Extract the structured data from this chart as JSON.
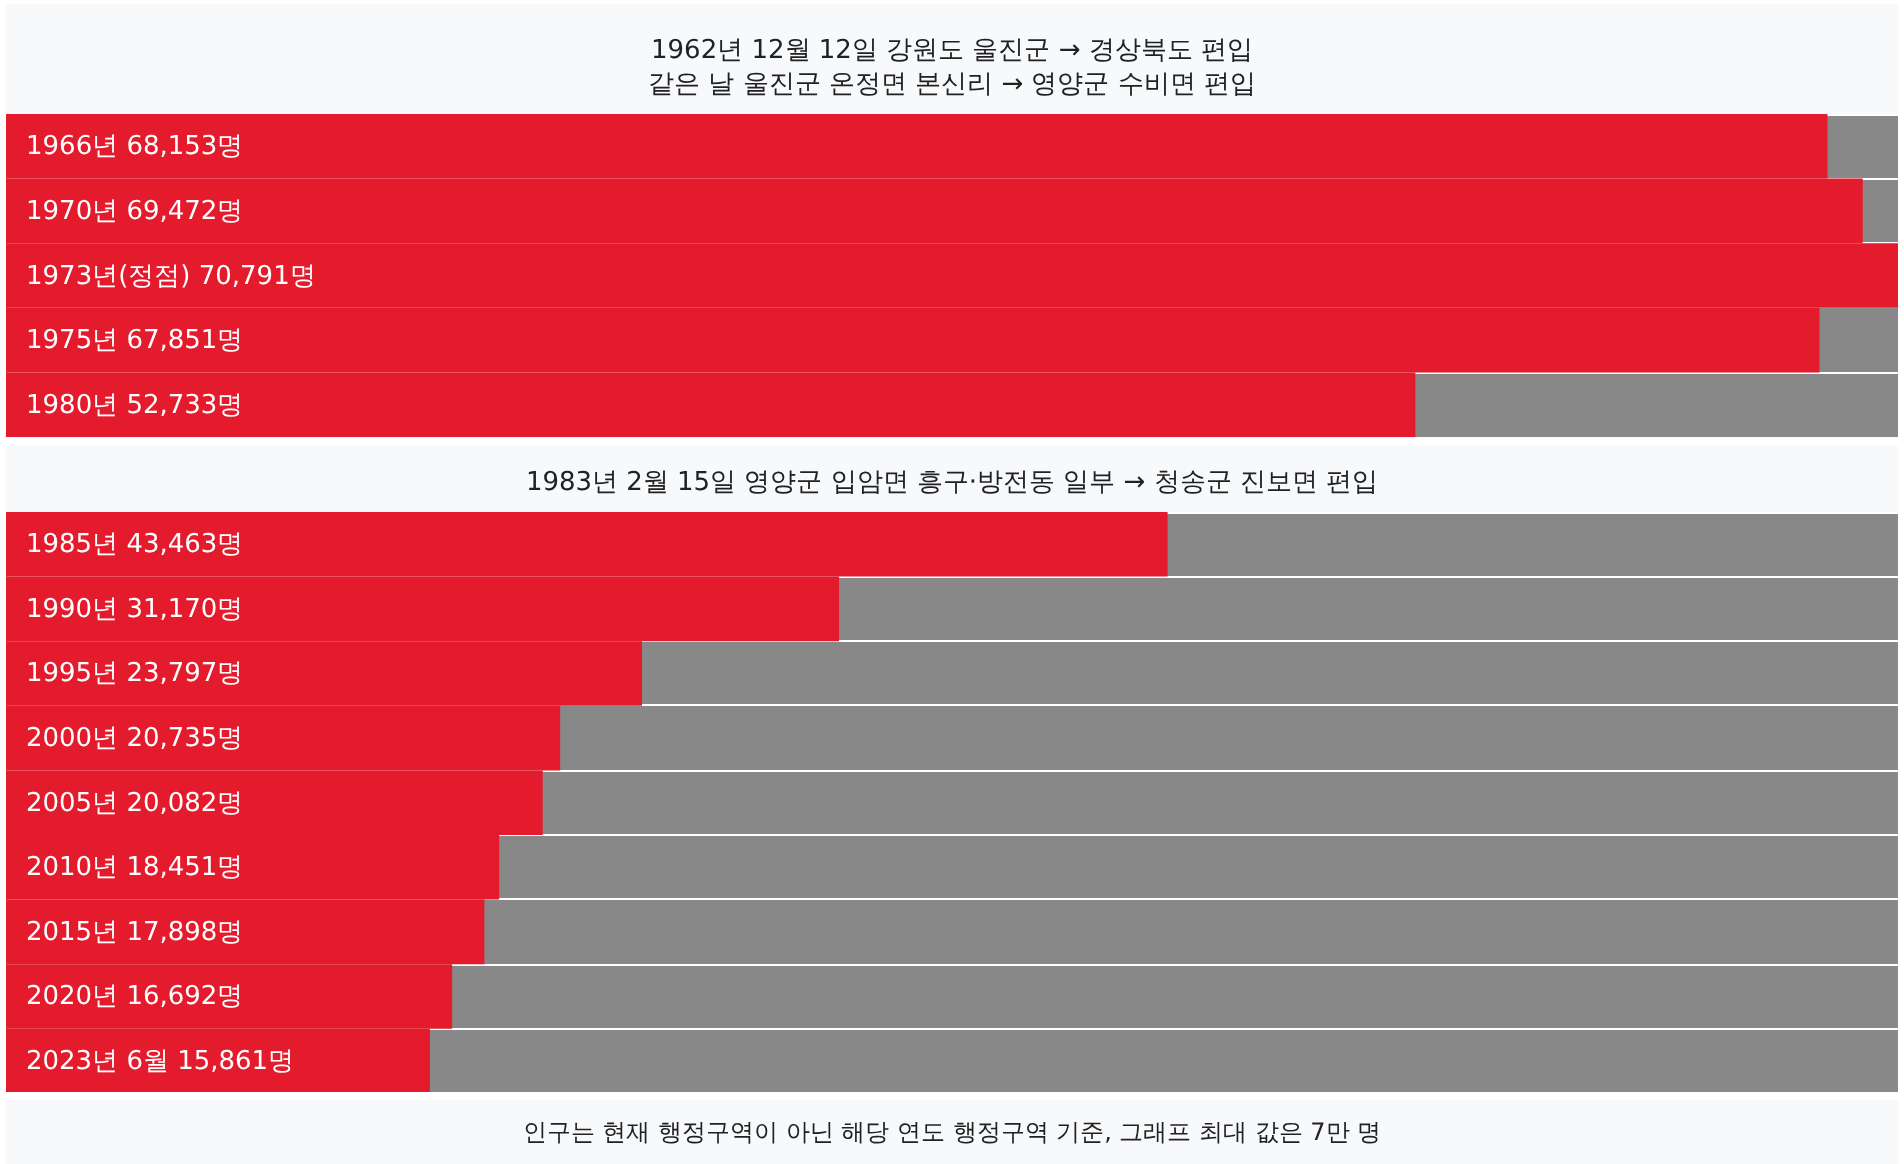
{
  "chart_data": [
    {
      "type": "bar",
      "orientation": "horizontal",
      "title": "1962년 12월 12일 강원도 울진군 → 경상북도 편입",
      "subtitle": "같은 날 울진군 온정면 본신리 → 영양군 수비면 편입",
      "categories": [
        "1966년",
        "1970년",
        "1973년(정점)",
        "1975년",
        "1980년"
      ],
      "values": [
        68153,
        69472,
        70791,
        67851,
        52733
      ],
      "value_labels": [
        "68,153명",
        "69,472명",
        "70,791명",
        "67,851명",
        "52,733명"
      ],
      "color": "#e31b2c",
      "tick_labels": false
    },
    {
      "type": "bar",
      "orientation": "horizontal",
      "title": "1983년 2월 15일 영양군 입암면 흥구·방전동 일부 → 청송군 진보면 편입",
      "categories": [
        "1985년",
        "1990년",
        "1995년",
        "2000년",
        "2005년",
        "2010년",
        "2015년",
        "2020년",
        "2023년 6월"
      ],
      "values": [
        43463,
        31170,
        23797,
        20735,
        20082,
        18451,
        17898,
        16692,
        15861
      ],
      "value_labels": [
        "43,463명",
        "31,170명",
        "23,797명",
        "20,735명",
        "20,082명",
        "18,451명",
        "17,898명",
        "16,692명",
        "15,861명"
      ],
      "color": "#e31b2c",
      "tick_labels": false,
      "annotations": [
        "인구는 현재 행정구역이 아닌 해당 연도 행정구역 기준, 그래프 최대 값은 7만 명"
      ]
    }
  ]
}
